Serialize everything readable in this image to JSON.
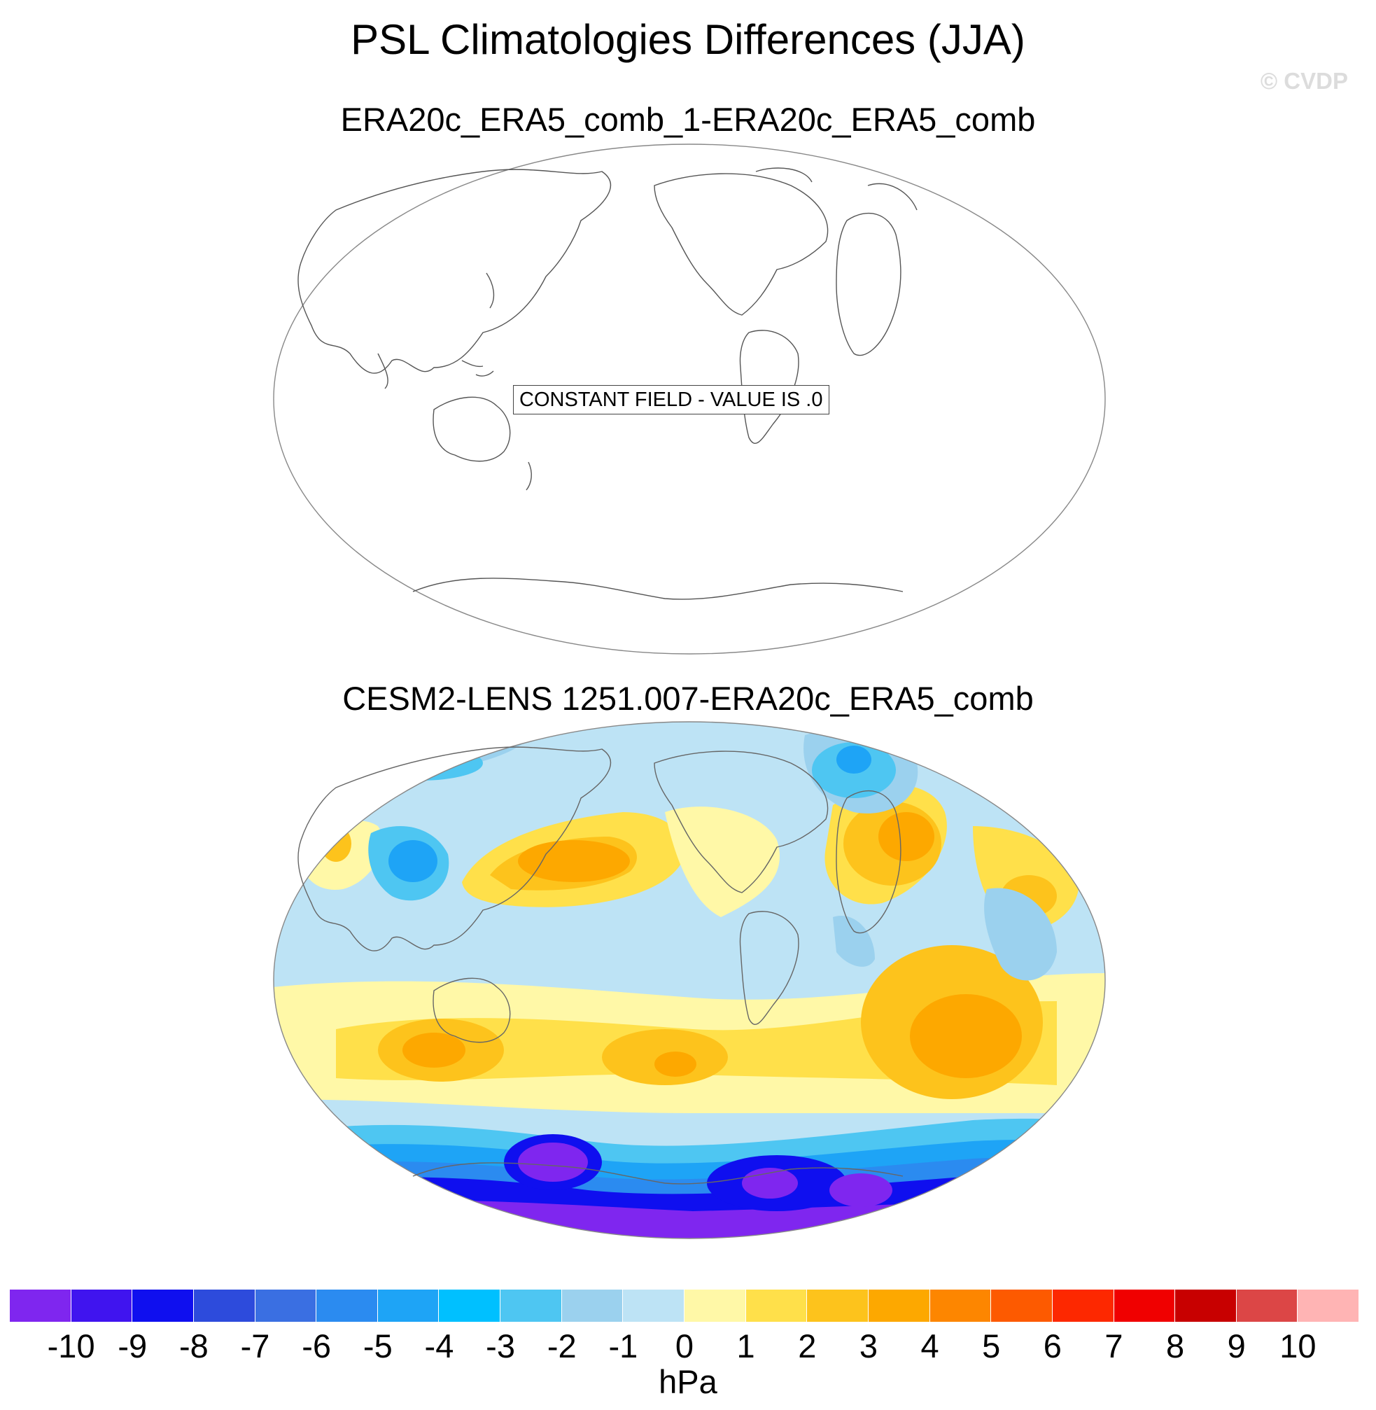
{
  "title": "PSL Climatologies Differences (JJA)",
  "credit": "© CVDP",
  "panels": [
    {
      "subtitle": "ERA20c_ERA5_comb_1-ERA20c_ERA5_comb",
      "note": "CONSTANT FIELD - VALUE IS .0",
      "field": "constant"
    },
    {
      "subtitle": "CESM2-LENS 1251.007-ERA20c_ERA5_comb",
      "field": "filled-contour"
    }
  ],
  "colorbar": {
    "colors": [
      "#7f26ef",
      "#4014ef",
      "#0f0fef",
      "#2d4bdc",
      "#3a6fe2",
      "#2b8bf0",
      "#1ea4f6",
      "#00c0ff",
      "#4ec6f2",
      "#9bd1ee",
      "#bde3f5",
      "#fff8a7",
      "#ffe04a",
      "#fdc31c",
      "#fda800",
      "#fd8600",
      "#fd5a00",
      "#fd2800",
      "#f00000",
      "#c80000",
      "#dc4646",
      "#ffb4b4"
    ],
    "labels": [
      "-10",
      "-9",
      "-8",
      "-7",
      "-6",
      "-5",
      "-4",
      "-3",
      "-2",
      "-1",
      "0",
      "1",
      "2",
      "3",
      "4",
      "5",
      "6",
      "7",
      "8",
      "9",
      "10"
    ],
    "units": "hPa"
  }
}
